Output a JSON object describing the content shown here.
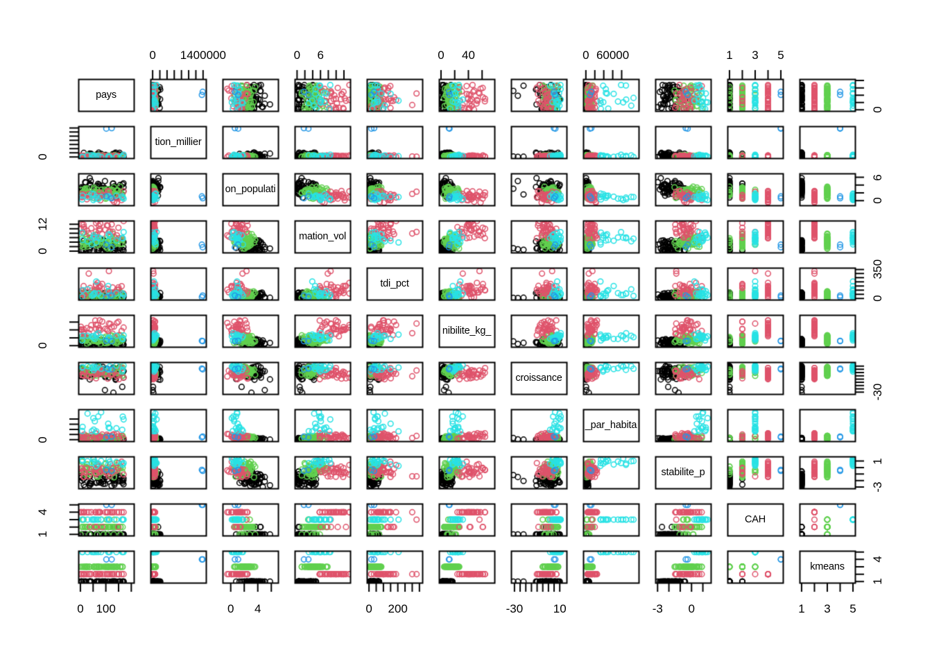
{
  "figure": {
    "title": "",
    "background": "#ffffff",
    "kind": "R pairs scatterplot matrix"
  },
  "chart_data": {
    "type": "scatter",
    "variant": "pairs-scatterplot-matrix",
    "grid": "off",
    "legend": "none",
    "n_variables": 11,
    "point_style": {
      "radius": 3.8,
      "stroke_width": 1.5,
      "shape": "open-circle"
    },
    "palette": {
      "cluster1": "#000000",
      "cluster2": "#DF536B",
      "cluster3": "#61D04F",
      "cluster4": "#2297E6",
      "cluster5": "#28E2E5"
    },
    "variables": [
      {
        "label": "pays",
        "range": [
          -8,
          210
        ],
        "ticks": [
          0,
          50,
          100,
          150,
          200
        ],
        "bottom_labels": [
          {
            "text": "0",
            "v": 0
          },
          {
            "text": "100",
            "v": 100
          }
        ],
        "right_labels": [
          {
            "text": "0",
            "v": 0
          }
        ]
      },
      {
        "label": "tion_millier",
        "range": [
          -60000,
          1480000
        ],
        "ticks": [
          0,
          200000,
          400000,
          600000,
          800000,
          1000000,
          1200000,
          1400000
        ],
        "top_labels": [
          {
            "text": "0",
            "v": 0
          },
          {
            "text": "1400000",
            "v": 1400000
          }
        ],
        "left_labels": [
          {
            "text": "0",
            "v": 0
          }
        ]
      },
      {
        "label": "on_populati",
        "range": [
          -1.2,
          7
        ],
        "ticks": [
          0,
          2,
          4,
          6
        ],
        "bottom_labels": [
          {
            "text": "0",
            "v": 0
          },
          {
            "text": "4",
            "v": 4
          }
        ],
        "right_labels": [
          {
            "text": "0",
            "v": 0
          },
          {
            "text": "6",
            "v": 6
          }
        ]
      },
      {
        "label": "mation_vol",
        "range": [
          -0.6,
          13.6
        ],
        "ticks": [
          0,
          2,
          4,
          6,
          8,
          10,
          12
        ],
        "top_labels": [
          {
            "text": "0",
            "v": 0
          },
          {
            "text": "6",
            "v": 6
          }
        ],
        "left_labels": [
          {
            "text": "0",
            "v": 0
          },
          {
            "text": "12",
            "v": 12
          }
        ]
      },
      {
        "label": "tdi_pct",
        "range": [
          -15,
          370
        ],
        "ticks": [
          0,
          50,
          100,
          150,
          200,
          250,
          300,
          350
        ],
        "bottom_labels": [
          {
            "text": "0",
            "v": 0
          },
          {
            "text": "200",
            "v": 200
          }
        ],
        "right_labels": [
          {
            "text": "0",
            "v": 0
          },
          {
            "text": "350",
            "v": 350
          }
        ]
      },
      {
        "label": "nibilite_kg_",
        "range": [
          -3,
          78
        ],
        "ticks": [
          0,
          20,
          40,
          60
        ],
        "top_labels": [
          {
            "text": "0",
            "v": 0
          },
          {
            "text": "40",
            "v": 40
          }
        ],
        "left_labels": [
          {
            "text": "0",
            "v": 0
          }
        ]
      },
      {
        "label": "croissance",
        "range": [
          -33,
          16
        ],
        "ticks": [
          -30,
          -25,
          -20,
          -15,
          -10,
          -5,
          0,
          5,
          10
        ],
        "bottom_labels": [
          {
            "text": "-30",
            "v": -30
          },
          {
            "text": "10",
            "v": 10
          }
        ],
        "right_labels": [
          {
            "text": "-30",
            "v": -30
          }
        ]
      },
      {
        "label": "_par_habita",
        "range": [
          -6000,
          118000
        ],
        "ticks": [
          0,
          20000,
          40000,
          60000,
          80000
        ],
        "top_labels": [
          {
            "text": "0",
            "v": 0
          },
          {
            "text": "60000",
            "v": 60000
          }
        ],
        "left_labels": [
          {
            "text": "0",
            "v": 0
          }
        ]
      },
      {
        "label": "stabilite_p",
        "range": [
          -3.2,
          1.7
        ],
        "ticks": [
          -3,
          -2,
          -1,
          0,
          1
        ],
        "bottom_labels": [
          {
            "text": "-3",
            "v": -3
          },
          {
            "text": "0",
            "v": 0
          }
        ],
        "right_labels": [
          {
            "text": "-3",
            "v": -3
          },
          {
            "text": "1",
            "v": 1
          }
        ]
      },
      {
        "label": "CAH",
        "range": [
          0.84,
          5.16
        ],
        "ticks": [
          1,
          2,
          3,
          4,
          5
        ],
        "top_labels": [
          {
            "text": "1",
            "v": 1
          },
          {
            "text": "3",
            "v": 3
          },
          {
            "text": "5",
            "v": 5
          }
        ],
        "left_labels": [
          {
            "text": "1",
            "v": 1
          },
          {
            "text": "4",
            "v": 4
          }
        ]
      },
      {
        "label": "kmeans",
        "range": [
          0.84,
          5.16
        ],
        "ticks": [
          1,
          2,
          3,
          4,
          5
        ],
        "bottom_labels": [
          {
            "text": "1",
            "v": 1
          },
          {
            "text": "3",
            "v": 3
          },
          {
            "text": "5",
            "v": 5
          }
        ],
        "right_labels": [
          {
            "text": "1",
            "v": 1
          },
          {
            "text": "4",
            "v": 4
          }
        ]
      }
    ],
    "seed": 20,
    "clusters": [
      {
        "name": "cluster-1-black",
        "color": "#000000",
        "kmeans": 1,
        "n": 60,
        "vars": [
          {
            "d": "u",
            "p": [
              1,
              172
            ]
          },
          {
            "d": "pw",
            "p": [
              300,
              220000,
              2.5
            ]
          },
          {
            "d": "n",
            "p": [
              3.3,
              1.0,
              0.8,
              6.4
            ]
          },
          {
            "d": "pw",
            "p": [
              0.3,
              5.0,
              1.8
            ]
          },
          {
            "d": "pw",
            "p": [
              2,
              75,
              1.6
            ]
          },
          {
            "d": "pw",
            "p": [
              1.5,
              17,
              1.5
            ]
          },
          {
            "d": "n",
            "p": [
              0,
              5,
              -13,
              10
            ],
            "out": [
              -31,
              -27,
              -22
            ]
          },
          {
            "d": "pw",
            "p": [
              400,
              7000,
              2
            ]
          },
          {
            "d": "n",
            "p": [
              -1.7,
              0.65,
              -3.1,
              -0.3
            ]
          },
          {
            "d": "cat",
            "vals": [
              1,
              2
            ],
            "w": [
              0.93,
              0.07
            ]
          },
          {
            "d": "c",
            "p": [
              1
            ]
          }
        ]
      },
      {
        "name": "cluster-3-green",
        "color": "#61D04F",
        "kmeans": 3,
        "n": 55,
        "vars": [
          {
            "d": "u",
            "p": [
              1,
              172
            ]
          },
          {
            "d": "pw",
            "p": [
              200,
              90000,
              2.5
            ]
          },
          {
            "d": "n",
            "p": [
              2.1,
              0.75,
              0.4,
              4.2
            ]
          },
          {
            "d": "n",
            "p": [
              4.2,
              1.5,
              1.2,
              7.8
            ]
          },
          {
            "d": "pw",
            "p": [
              4,
              95,
              1.6
            ]
          },
          {
            "d": "n",
            "p": [
              16,
              5.5,
              4,
              29
            ]
          },
          {
            "d": "n",
            "p": [
              3,
              3.2,
              -5,
              10
            ]
          },
          {
            "d": "pw",
            "p": [
              1200,
              16000,
              1.7
            ]
          },
          {
            "d": "n",
            "p": [
              -0.35,
              0.5,
              -1.5,
              0.9
            ]
          },
          {
            "d": "cat",
            "vals": [
              2,
              1,
              3
            ],
            "w": [
              0.8,
              0.13,
              0.07
            ]
          },
          {
            "d": "c",
            "p": [
              3
            ]
          }
        ]
      },
      {
        "name": "cluster-2-red",
        "color": "#DF536B",
        "kmeans": 2,
        "n": 34,
        "vars": [
          {
            "d": "u",
            "p": [
              1,
              172
            ]
          },
          {
            "d": "pw",
            "p": [
              300,
              70000,
              2
            ]
          },
          {
            "d": "n",
            "p": [
              1.0,
              0.65,
              -0.5,
              2.5
            ]
          },
          {
            "d": "n",
            "p": [
              9.8,
              2.0,
              5.8,
              13.4
            ]
          },
          {
            "d": "n",
            "p": [
              75,
              45,
              15,
              200
            ],
            "out": [
              330,
              300
            ]
          },
          {
            "d": "n",
            "p": [
              46,
              11,
              24,
              74
            ]
          },
          {
            "d": "n",
            "p": [
              -1,
              3.8,
              -12,
              7
            ]
          },
          {
            "d": "pw",
            "p": [
              3500,
              26000,
              1.5
            ]
          },
          {
            "d": "n",
            "p": [
              -0.5,
              0.65,
              -2,
              0.9
            ]
          },
          {
            "d": "cat",
            "vals": [
              4,
              3,
              2
            ],
            "w": [
              0.78,
              0.12,
              0.1
            ]
          },
          {
            "d": "c",
            "p": [
              2
            ]
          }
        ]
      },
      {
        "name": "cluster-5-cyan",
        "color": "#28E2E5",
        "kmeans": 5,
        "n": 17,
        "vars": [
          {
            "d": "u",
            "p": [
              1,
              172
            ]
          },
          {
            "d": "pw",
            "p": [
              300,
              120000,
              2
            ]
          },
          {
            "d": "n",
            "p": [
              0.8,
              0.5,
              -0.2,
              1.8
            ]
          },
          {
            "d": "n",
            "p": [
              5.6,
              1.4,
              3,
              8.5
            ]
          },
          {
            "d": "n",
            "p": [
              50,
              30,
              10,
              110
            ],
            "out": [
              205,
              150
            ]
          },
          {
            "d": "n",
            "p": [
              24,
              5.5,
              13,
              35
            ]
          },
          {
            "d": "n",
            "p": [
              7,
              3,
              1.5,
              13.5
            ]
          },
          {
            "d": "u",
            "p": [
              32000,
              112000
            ]
          },
          {
            "d": "n",
            "p": [
              0.95,
              0.33,
              0.25,
              1.55
            ]
          },
          {
            "d": "cat",
            "vals": [
              3
            ],
            "w": [
              1
            ]
          },
          {
            "d": "c",
            "p": [
              5
            ]
          }
        ]
      },
      {
        "name": "cluster-4-blue",
        "color": "#2297E6",
        "kmeans": 4,
        "n": 2,
        "vars": [
          {
            "d": "u",
            "p": [
              60,
              140
            ]
          },
          {
            "d": "u",
            "p": [
              1340000,
              1410000
            ]
          },
          {
            "d": "u",
            "p": [
              0.5,
              1.1
            ]
          },
          {
            "d": "u",
            "p": [
              1.5,
              3.5
            ]
          },
          {
            "d": "u",
            "p": [
              15,
              40
            ]
          },
          {
            "d": "u",
            "p": [
              9,
              16
            ]
          },
          {
            "d": "u",
            "p": [
              4,
              7
            ]
          },
          {
            "d": "u",
            "p": [
              7000,
              13000
            ]
          },
          {
            "d": "u",
            "p": [
              -0.6,
              0.2
            ]
          },
          {
            "d": "c",
            "p": [
              5
            ]
          },
          {
            "d": "c",
            "p": [
              4
            ]
          }
        ]
      }
    ]
  }
}
